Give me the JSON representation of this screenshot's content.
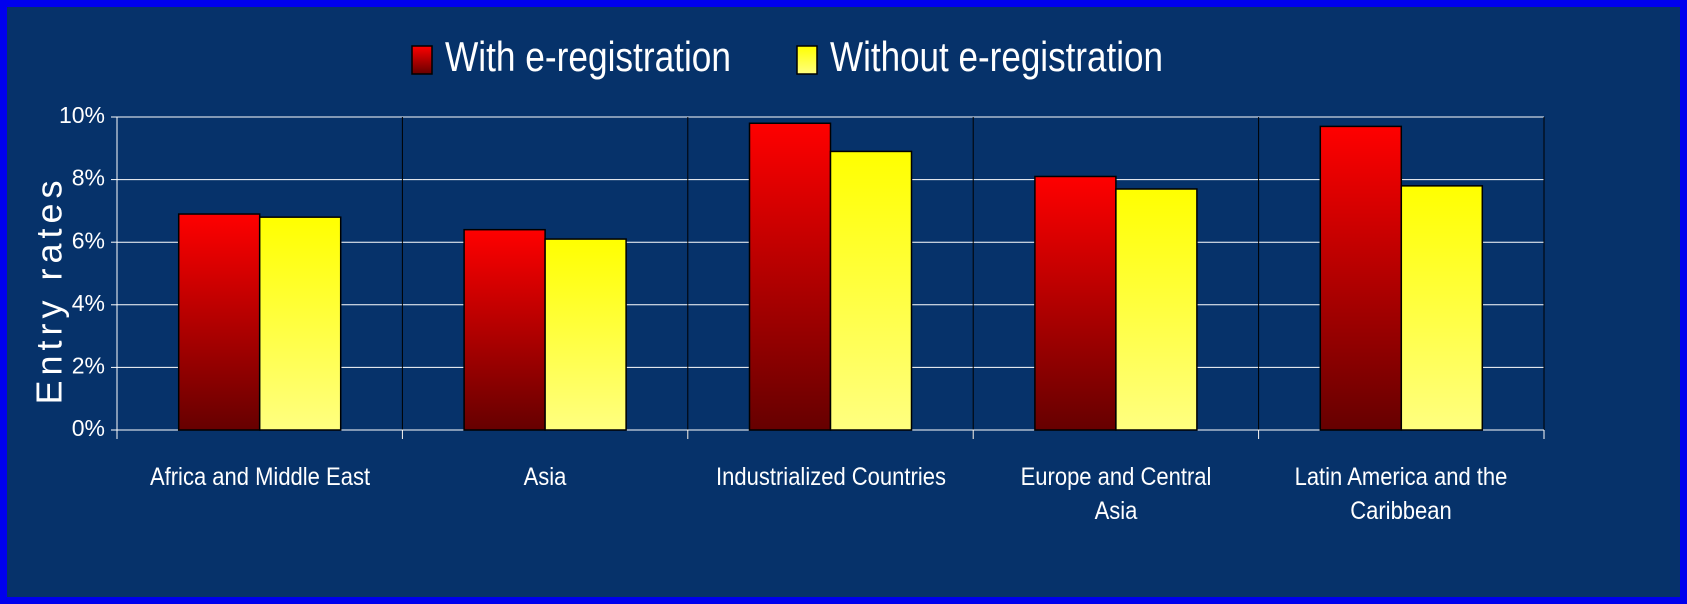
{
  "chart_data": {
    "type": "bar",
    "y_label": "Entry rates",
    "categories": [
      "Africa and Middle East",
      "Asia",
      "Industrialized Countries",
      "Europe and Central Asia",
      "Latin America and the Caribbean"
    ],
    "series": [
      {
        "name": "With e-registration",
        "color": "#ff0000",
        "values": [
          6.9,
          6.4,
          9.8,
          8.1,
          9.7
        ]
      },
      {
        "name": "Without e-registration",
        "color": "#ffff00",
        "values": [
          6.8,
          6.1,
          8.9,
          7.7,
          7.8
        ]
      }
    ],
    "ylim": [
      0,
      10
    ],
    "yticks": [
      {
        "value": 0,
        "label": "0%"
      },
      {
        "value": 2,
        "label": "2%"
      },
      {
        "value": 4,
        "label": "4%"
      },
      {
        "value": 6,
        "label": "6%"
      },
      {
        "value": 8,
        "label": "8%"
      },
      {
        "value": 10,
        "label": "10%"
      }
    ],
    "grid": true,
    "legend": "top"
  }
}
